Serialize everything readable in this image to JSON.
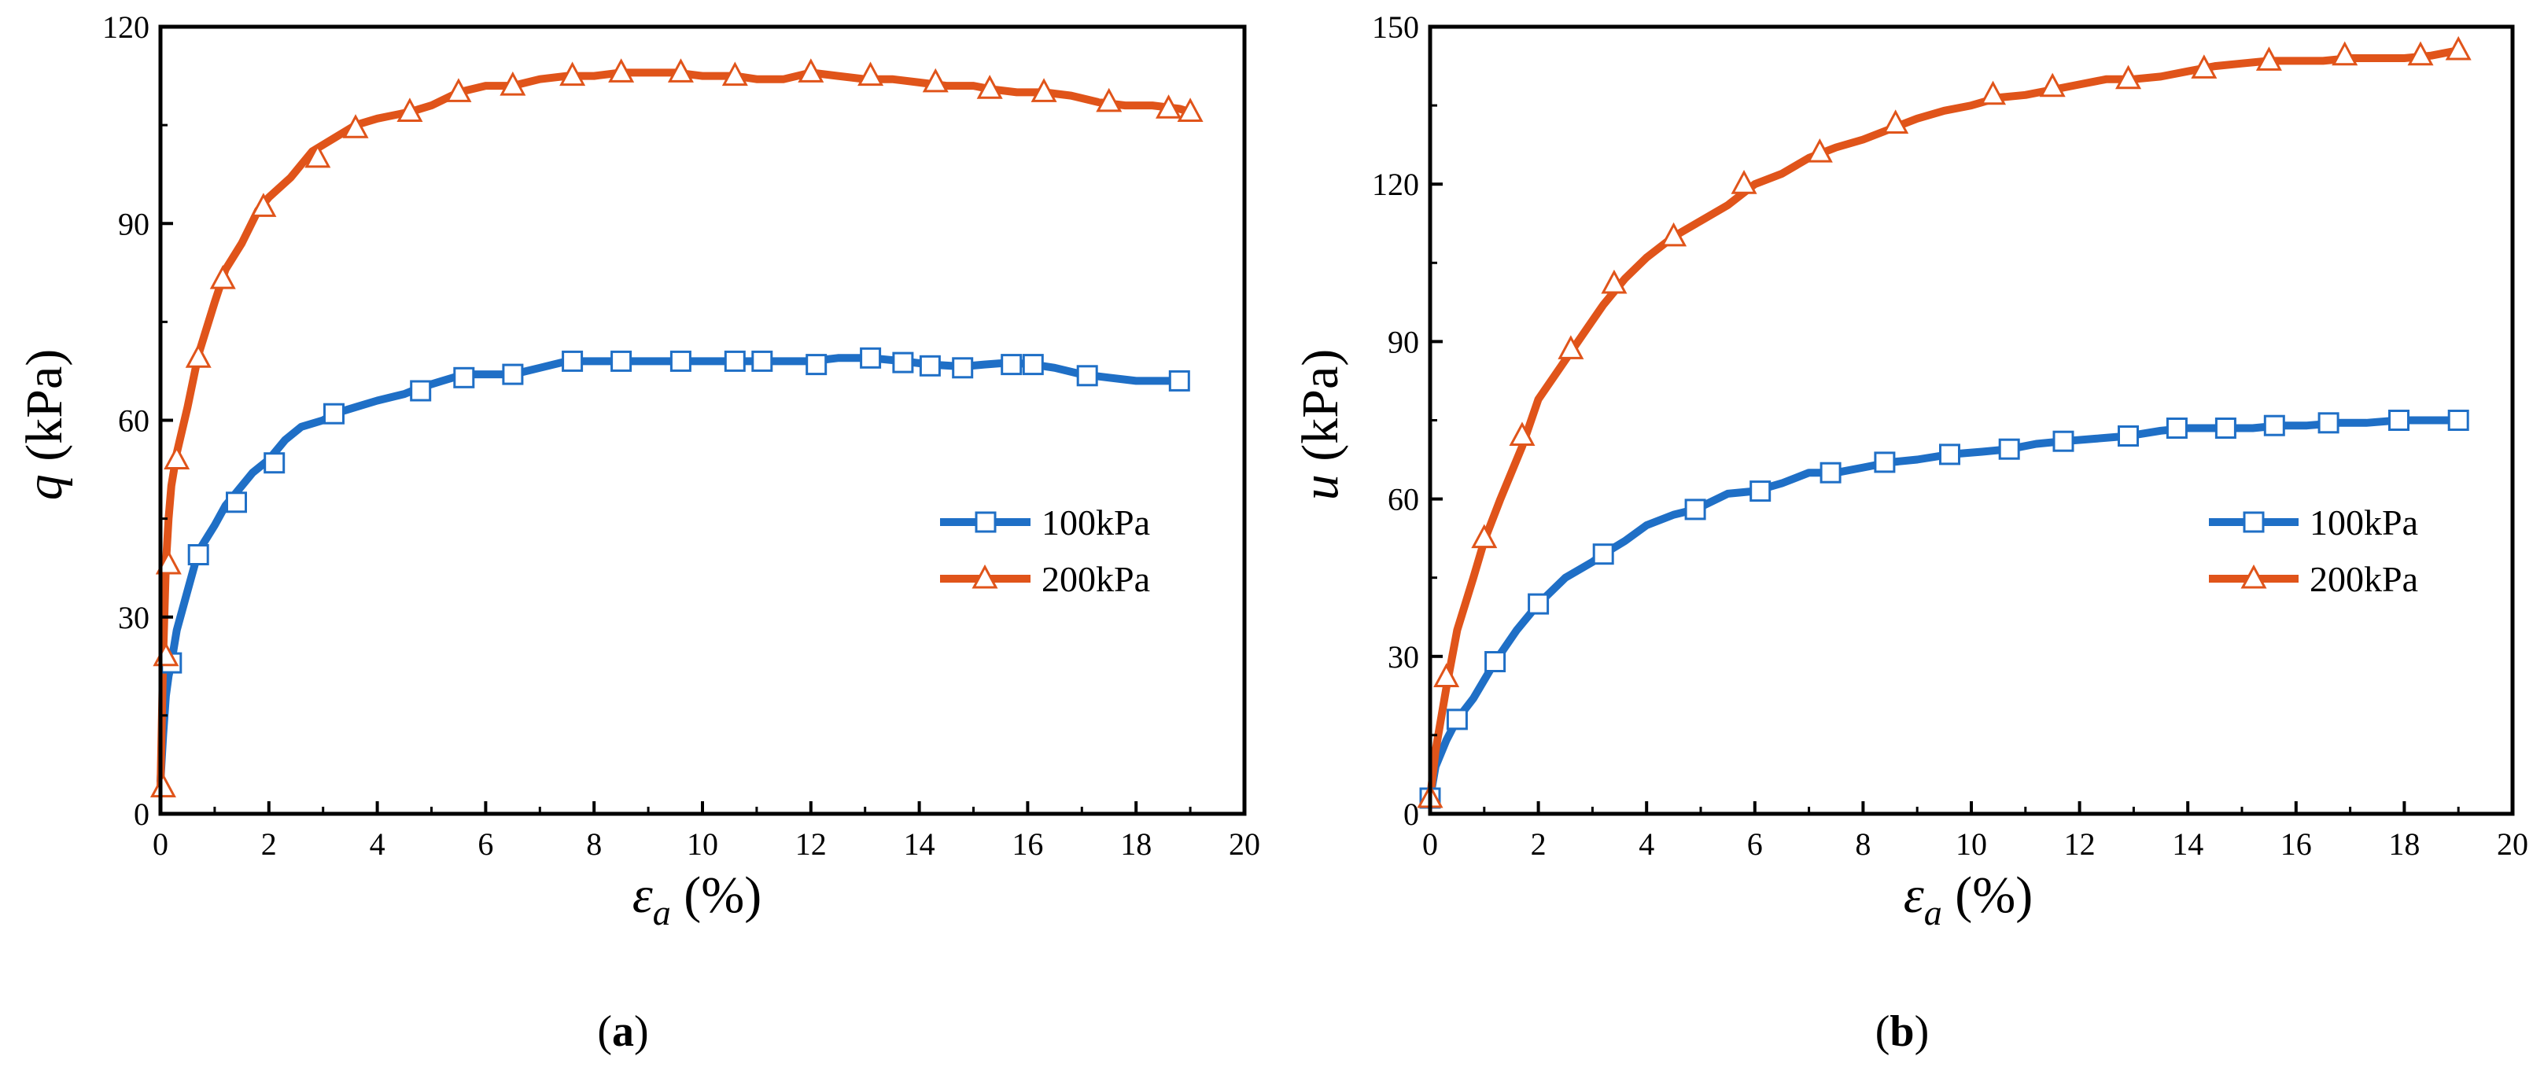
{
  "colors": {
    "series_100": "#1f6fc6",
    "series_200": "#e0541a",
    "axis": "#000000"
  },
  "chart_data": [
    {
      "type": "line",
      "panel": "a",
      "panel_label": {
        "open": "(",
        "letter": "a",
        "close": ")"
      },
      "ylabel": {
        "symbol": "q",
        "unit": " (kPa)"
      },
      "xlabel": {
        "symbol": "ε",
        "sub": "a",
        "unit": " (%)"
      },
      "xlim": [
        0,
        20
      ],
      "ylim": [
        0,
        120
      ],
      "xticks": [
        0,
        2,
        4,
        6,
        8,
        10,
        12,
        14,
        16,
        18,
        20
      ],
      "yticks": [
        0,
        30,
        60,
        90,
        120
      ],
      "legend_position": "center-right",
      "series": [
        {
          "name": "100kPa",
          "color": "#1f6fc6",
          "marker": "square",
          "x": [
            0.0,
            0.05,
            0.1,
            0.15,
            0.2,
            0.3,
            0.5,
            0.7,
            1.0,
            1.2,
            1.4,
            1.7,
            2.0,
            2.3,
            2.6,
            3.0,
            3.2,
            3.6,
            4.0,
            4.5,
            4.8,
            5.2,
            5.6,
            6.0,
            6.5,
            7.0,
            7.5,
            8.0,
            8.5,
            9.0,
            9.6,
            10.0,
            10.6,
            11.0,
            11.5,
            12.0,
            12.5,
            13.1,
            13.7,
            14.2,
            14.8,
            15.2,
            15.7,
            16.1,
            16.5,
            17.0,
            17.5,
            18.0,
            18.5,
            18.8
          ],
          "y": [
            5,
            12,
            18,
            21,
            23,
            28,
            34,
            40,
            44,
            47,
            49,
            52,
            54,
            57,
            59,
            60,
            61,
            62,
            63,
            64,
            65,
            66,
            67,
            67,
            67,
            68,
            69,
            69,
            69,
            69,
            69,
            69,
            69,
            69,
            69,
            69,
            69.5,
            69.5,
            69,
            68.5,
            68.2,
            68.5,
            68.8,
            68.5,
            68,
            67,
            66.5,
            66,
            66,
            66
          ],
          "marker_x": [
            0.2,
            0.7,
            1.4,
            2.1,
            3.2,
            4.8,
            5.6,
            6.5,
            7.6,
            8.5,
            9.6,
            10.6,
            11.1,
            12.1,
            13.1,
            13.7,
            14.2,
            14.8,
            15.7,
            16.1,
            17.1,
            18.8
          ],
          "marker_y": [
            23,
            39.5,
            47.5,
            53.5,
            61,
            64.5,
            66.5,
            67,
            69,
            69,
            69,
            69,
            69,
            68.5,
            69.5,
            68.8,
            68.3,
            68,
            68.5,
            68.5,
            66.8,
            66
          ]
        },
        {
          "name": "200kPa",
          "color": "#e0541a",
          "marker": "triangle",
          "x": [
            0.0,
            0.05,
            0.1,
            0.15,
            0.2,
            0.3,
            0.5,
            0.7,
            1.0,
            1.2,
            1.5,
            1.8,
            2.0,
            2.4,
            2.8,
            3.2,
            3.6,
            4.0,
            4.6,
            5.0,
            5.5,
            6.0,
            6.5,
            7.0,
            7.5,
            8.0,
            8.5,
            9.0,
            9.5,
            10.0,
            10.6,
            11.0,
            11.5,
            12.0,
            12.5,
            13.0,
            13.5,
            14.0,
            14.5,
            15.0,
            15.3,
            15.8,
            16.3,
            16.8,
            17.3,
            17.8,
            18.3,
            18.8,
            19.0
          ],
          "y": [
            4,
            24,
            38,
            45,
            50,
            55,
            62,
            70,
            78,
            83,
            87,
            92,
            94,
            97,
            101,
            103,
            105,
            106,
            107,
            108,
            110,
            111,
            111,
            112,
            112.5,
            112.5,
            113,
            113,
            113,
            112.5,
            112.5,
            112,
            112,
            113,
            112.5,
            112,
            112,
            111.5,
            111,
            111,
            110.5,
            110,
            110,
            109.5,
            108.5,
            108,
            108,
            107.5,
            107
          ],
          "marker_x": [
            0.05,
            0.1,
            0.15,
            0.3,
            0.7,
            1.15,
            1.9,
            2.9,
            3.6,
            4.6,
            5.5,
            6.5,
            7.6,
            8.5,
            9.6,
            10.6,
            12.0,
            13.1,
            14.3,
            15.3,
            16.3,
            17.5,
            18.6,
            19.0
          ],
          "marker_y": [
            4,
            24,
            38,
            54,
            69.5,
            81.5,
            92.5,
            100,
            104.5,
            107,
            110,
            111,
            112.5,
            113,
            113,
            112.5,
            113,
            112.5,
            111.5,
            110.5,
            110,
            108.5,
            107.5,
            107
          ]
        }
      ]
    },
    {
      "type": "line",
      "panel": "b",
      "panel_label": {
        "open": "(",
        "letter": "b",
        "close": ")"
      },
      "ylabel": {
        "symbol": "u",
        "unit": " (kPa)"
      },
      "xlabel": {
        "symbol": "ε",
        "sub": "a",
        "unit": " (%)"
      },
      "xlim": [
        0,
        20
      ],
      "ylim": [
        0,
        150
      ],
      "xticks": [
        0,
        2,
        4,
        6,
        8,
        10,
        12,
        14,
        16,
        18,
        20
      ],
      "yticks": [
        0,
        30,
        60,
        90,
        120,
        150
      ],
      "legend_position": "center-right",
      "series": [
        {
          "name": "100kPa",
          "color": "#1f6fc6",
          "marker": "square",
          "x": [
            0.0,
            0.1,
            0.3,
            0.5,
            0.8,
            1.2,
            1.6,
            2.0,
            2.5,
            3.0,
            3.2,
            3.6,
            4.0,
            4.5,
            4.9,
            5.5,
            6.0,
            6.5,
            7.0,
            7.5,
            8.0,
            8.5,
            9.0,
            9.6,
            10.2,
            10.7,
            11.2,
            11.7,
            12.3,
            12.9,
            13.5,
            14.0,
            14.7,
            15.2,
            15.7,
            16.2,
            16.8,
            17.3,
            17.9,
            18.5,
            19.0
          ],
          "y": [
            3,
            9,
            14,
            18,
            22,
            29,
            35,
            40,
            45,
            48,
            49.5,
            52,
            55,
            57,
            58,
            61,
            61.5,
            63,
            65,
            65,
            66,
            67,
            67.5,
            68.5,
            69,
            69.5,
            70.5,
            71,
            71.5,
            72,
            73,
            73.5,
            73.5,
            73.5,
            74,
            74,
            74.5,
            74.5,
            75,
            75,
            75
          ],
          "marker_x": [
            0.0,
            0.5,
            1.2,
            2.0,
            3.2,
            4.9,
            6.1,
            7.4,
            8.4,
            9.6,
            10.7,
            11.7,
            12.9,
            13.8,
            14.7,
            15.6,
            16.6,
            17.9,
            19.0
          ],
          "marker_y": [
            3,
            18,
            29,
            40,
            49.5,
            58,
            61.5,
            65,
            67,
            68.5,
            69.5,
            71,
            72,
            73.5,
            73.5,
            74,
            74.5,
            75,
            75
          ]
        },
        {
          "name": "200kPa",
          "color": "#e0541a",
          "marker": "triangle",
          "x": [
            0.0,
            0.1,
            0.3,
            0.5,
            0.8,
            1.0,
            1.3,
            1.7,
            2.0,
            2.4,
            2.8,
            3.2,
            3.6,
            4.0,
            4.5,
            5.0,
            5.5,
            6.0,
            6.5,
            7.0,
            7.5,
            8.0,
            8.5,
            9.0,
            9.5,
            10.0,
            10.5,
            11.0,
            11.5,
            12.0,
            12.5,
            13.0,
            13.5,
            14.0,
            14.5,
            15.0,
            15.5,
            16.0,
            16.5,
            17.0,
            17.5,
            18.0,
            18.5,
            19.0
          ],
          "y": [
            3,
            12,
            24,
            35,
            45,
            52,
            60,
            70,
            79,
            85,
            91,
            97,
            102,
            106,
            110,
            113,
            116,
            120,
            122,
            125,
            127,
            128.5,
            130.5,
            132.5,
            134,
            135,
            136.5,
            137,
            138,
            139,
            140,
            140,
            140.5,
            141.5,
            142.5,
            143,
            143.5,
            143.5,
            143.5,
            144,
            144,
            144,
            144.5,
            145.5
          ],
          "marker_x": [
            0.0,
            0.3,
            1.0,
            1.7,
            2.6,
            3.4,
            4.5,
            5.8,
            7.2,
            8.6,
            10.4,
            11.5,
            12.9,
            14.3,
            15.5,
            16.9,
            18.3,
            19.0
          ],
          "marker_y": [
            3,
            26,
            52.5,
            72,
            88.5,
            101,
            110,
            120,
            126,
            131.5,
            137,
            138.5,
            140,
            142,
            143.5,
            144.5,
            144.5,
            145.5
          ]
        }
      ]
    }
  ]
}
